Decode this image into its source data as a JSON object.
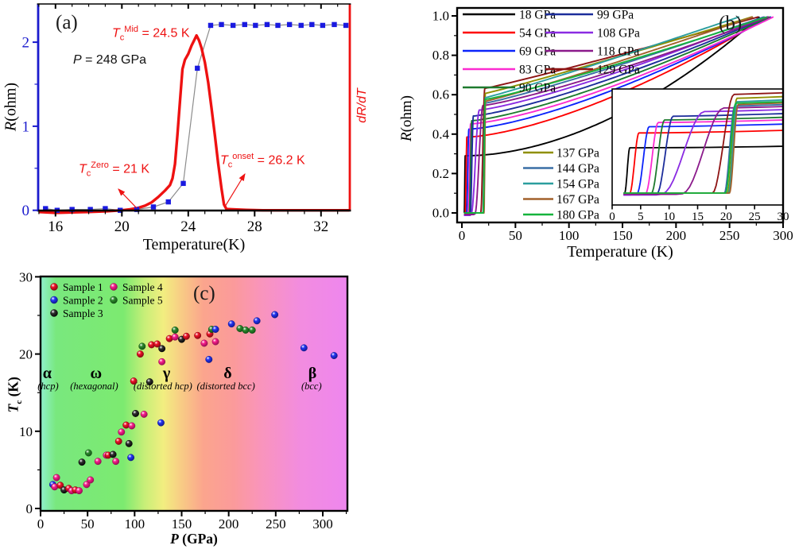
{
  "labels": {
    "panel_a": "(a)",
    "panel_b": "(b)",
    "panel_c": "(c)",
    "a_x": "Temperature(K)",
    "a_y_R": "R",
    "a_y_unit": "(ohm)",
    "a_y_right": "dR/dT",
    "a_note_P": "P",
    "a_note_rest": " = 248 GPa",
    "a_mid_T": "T",
    "a_mid_sub": "c",
    "a_mid_sup": "Mid",
    "a_mid_rest": " = 24.5 K",
    "a_zero_T": "T",
    "a_zero_sub": "c",
    "a_zero_sup": "Zero",
    "a_zero_rest": " = 21 K",
    "a_onset_T": "T",
    "a_onset_sub": "c",
    "a_onset_sup": "onset",
    "a_onset_rest": " = 26.2 K",
    "b_x": "Temperature (K)",
    "b_y_R": "R",
    "b_y_unit": "(ohm)",
    "c_x_P": "P",
    "c_x_rest": " (GPa)",
    "c_y_T": "T",
    "c_y_sub": "c",
    "c_y_rest": " (K)"
  },
  "chart_data": [
    {
      "id": "a",
      "type": "line",
      "title": "(a)",
      "xlabel": "Temperature(K)",
      "x_range": [
        14.95,
        33.7
      ],
      "x_ticks": [
        16,
        20,
        24,
        28,
        32
      ],
      "x_minor_step": 1,
      "ylabel_left": "R(ohm)",
      "y_range": [
        -0.06,
        2.45
      ],
      "y_ticks": [
        0,
        1,
        2
      ],
      "y_minor_step": 0.5,
      "ylabel_right": "dR/dT",
      "axis_colors": {
        "left": "#1a1acd",
        "right": "#ee1111",
        "bottom": "#000000"
      },
      "pressure_note": "P = 248 GPa",
      "annotations": [
        "Tc Mid = 24.5 K",
        "Tc Zero = 21 K",
        "Tc onset = 26.2 K"
      ],
      "series": [
        {
          "name": "R",
          "marker": "square",
          "marker_color": "#1a1ae0",
          "line_color": "#8c8c8c",
          "x": [
            15.4,
            16.1,
            17.0,
            18.1,
            19.0,
            19.9,
            20.9,
            21.9,
            22.8,
            23.7,
            24.55,
            25.35,
            26.0,
            26.7,
            27.4,
            28.05,
            28.75,
            29.4,
            30.1,
            30.8,
            31.45,
            32.1,
            32.8,
            33.5
          ],
          "y": [
            0.02,
            0.0,
            0.01,
            0.01,
            0.02,
            0.0,
            0.01,
            0.04,
            0.1,
            0.32,
            1.69,
            2.2,
            2.21,
            2.2,
            2.21,
            2.2,
            2.21,
            2.2,
            2.21,
            2.2,
            2.21,
            2.2,
            2.21,
            2.2
          ]
        },
        {
          "name": "dR/dT",
          "color": "#ee1111",
          "x": [
            15.0,
            16,
            17,
            18,
            19,
            20,
            20.5,
            21,
            21.4,
            21.8,
            22.2,
            22.6,
            22.9,
            23.05,
            23.2,
            23.35,
            23.5,
            23.65,
            23.8,
            24.0,
            24.2,
            24.35,
            24.5,
            24.65,
            24.8,
            25.0,
            25.2,
            25.4,
            25.6,
            25.8,
            26.0,
            26.15,
            26.3,
            26.8,
            27.5,
            28.5,
            30,
            32,
            33.7
          ],
          "y": [
            -0.02,
            -0.03,
            -0.025,
            -0.02,
            -0.012,
            0.0,
            0.012,
            0.03,
            0.055,
            0.095,
            0.16,
            0.235,
            0.3,
            0.38,
            0.55,
            0.9,
            1.3,
            1.68,
            1.79,
            1.86,
            1.96,
            2.02,
            2.08,
            2.02,
            1.93,
            1.76,
            1.52,
            1.22,
            0.9,
            0.56,
            0.26,
            0.07,
            0.015,
            0.01,
            0.005,
            0.0,
            0.0,
            0.0,
            0.0
          ]
        }
      ]
    },
    {
      "id": "b",
      "type": "line",
      "xlabel": "Temperature (K)",
      "x_range": [
        -4.5,
        300
      ],
      "x_ticks": [
        0,
        50,
        100,
        150,
        200,
        250,
        300
      ],
      "x_minor_step": 25,
      "ylabel": "R(ohm)",
      "y_range": [
        -0.05,
        1.04
      ],
      "y_tick_labels": [
        "0.0",
        "0.2",
        "0.4",
        "0.6",
        "0.8",
        "1.0"
      ],
      "y_minor_step": 0.1,
      "inset": {
        "x_range": [
          0,
          30
        ],
        "x_ticks": [
          0,
          5,
          10,
          15,
          20,
          25,
          30
        ]
      },
      "series": [
        {
          "label": "18 GPa",
          "color": "#000000",
          "tc_zero": 2.2,
          "tc_onset": 3.1,
          "r_residual": 0.29,
          "t_end": 278,
          "curve_exp": 1.85,
          "dip": 0
        },
        {
          "label": "54 GPa",
          "color": "#fe0000",
          "tc_zero": 3.1,
          "tc_onset": 4.7,
          "r_residual": 0.385,
          "t_end": 286,
          "curve_exp": 1.5,
          "dip": 0.004
        },
        {
          "label": "69 GPa",
          "color": "#0b24fb",
          "tc_zero": 4.4,
          "tc_onset": 6.5,
          "r_residual": 0.425,
          "t_end": 289,
          "curve_exp": 1.42,
          "dip": 0.012
        },
        {
          "label": "83 GPa",
          "color": "#fb2bd0",
          "tc_zero": 5.9,
          "tc_onset": 8.1,
          "r_residual": 0.452,
          "t_end": 291,
          "curve_exp": 1.38,
          "dip": 0.012
        },
        {
          "label": "90 GPa",
          "color": "#1e7a2e",
          "tc_zero": 6.9,
          "tc_onset": 9.2,
          "r_residual": 0.468,
          "t_end": 288,
          "curve_exp": 1.32,
          "dip": 0.008
        },
        {
          "label": "99 GPa",
          "color": "#1c2d9b",
          "tc_zero": 7.9,
          "tc_onset": 10.7,
          "r_residual": 0.492,
          "t_end": 286,
          "curve_exp": 1.28,
          "dip": 0.01
        },
        {
          "label": "108 GPa",
          "color": "#8a2be2",
          "tc_zero": 8.9,
          "tc_onset": 16.2,
          "r_residual": 0.522,
          "t_end": 283,
          "curve_exp": 1.24,
          "dip": 0.012
        },
        {
          "label": "118 GPa",
          "color": "#8b1a8b",
          "tc_zero": 12.4,
          "tc_onset": 19.6,
          "r_residual": 0.545,
          "t_end": 287,
          "curve_exp": 1.2,
          "dip": 0.008
        },
        {
          "label": "129 GPa",
          "color": "#8e1414",
          "tc_zero": 17.6,
          "tc_onset": 21.4,
          "r_residual": 0.632,
          "t_end": 277,
          "curve_exp": 1.06,
          "dip": 0
        },
        {
          "label": "137 GPa",
          "color": "#8f8f00",
          "tc_zero": 20.2,
          "tc_onset": 21.9,
          "r_residual": 0.607,
          "t_end": 271,
          "curve_exp": 1.06,
          "dip": 0
        },
        {
          "label": "144 GPa",
          "color": "#3a6ea5",
          "tc_zero": 19.7,
          "tc_onset": 21.5,
          "r_residual": 0.557,
          "t_end": 282,
          "curve_exp": 1.12,
          "dip": 0
        },
        {
          "label": "154 GPa",
          "color": "#2b9e9e",
          "tc_zero": 20.4,
          "tc_onset": 21.9,
          "r_residual": 0.585,
          "t_end": 259,
          "curve_exp": 1.06,
          "dip": 0
        },
        {
          "label": "167 GPa",
          "color": "#a2612b",
          "tc_zero": 20.6,
          "tc_onset": 22.1,
          "r_residual": 0.567,
          "t_end": 272,
          "curve_exp": 1.08,
          "dip": 0
        },
        {
          "label": "180 GPa",
          "color": "#15b43c",
          "tc_zero": 19.9,
          "tc_onset": 21.7,
          "r_residual": 0.576,
          "t_end": 285,
          "curve_exp": 1.12,
          "dip": 0
        }
      ]
    },
    {
      "id": "c",
      "type": "scatter",
      "xlabel": "P (GPa)",
      "x_range": [
        0,
        326
      ],
      "x_ticks": [
        0,
        50,
        100,
        150,
        200,
        250,
        300
      ],
      "x_minor_step": 25,
      "ylabel": "Tc (K)",
      "y_range": [
        0,
        30.3
      ],
      "y_ticks": [
        0,
        10,
        20,
        30
      ],
      "y_minor_step": 5,
      "samples": [
        {
          "name": "Sample 1",
          "color": "#f01428",
          "dark": "#7a0410"
        },
        {
          "name": "Sample 2",
          "color": "#2435f5",
          "dark": "#0d1680"
        },
        {
          "name": "Sample 3",
          "color": "#303030",
          "dark": "#000000"
        },
        {
          "name": "Sample 4",
          "color": "#fa1e8c",
          "dark": "#8c0a4d"
        },
        {
          "name": "Sample 5",
          "color": "#2d8a2d",
          "dark": "#0f4a12"
        }
      ],
      "points": [
        [
          13,
          3.1,
          1
        ],
        [
          17,
          4.0,
          3
        ],
        [
          15,
          2.8,
          3
        ],
        [
          21,
          3.0,
          0
        ],
        [
          25,
          2.4,
          2
        ],
        [
          30,
          2.6,
          0
        ],
        [
          33,
          2.3,
          3
        ],
        [
          37,
          2.4,
          0
        ],
        [
          41,
          2.3,
          3
        ],
        [
          49,
          3.1,
          3
        ],
        [
          53,
          3.7,
          3
        ],
        [
          44,
          6.0,
          2
        ],
        [
          51,
          7.2,
          4
        ],
        [
          61,
          6.1,
          3
        ],
        [
          70,
          6.9,
          3
        ],
        [
          72,
          6.9,
          0
        ],
        [
          77,
          7.0,
          2
        ],
        [
          80,
          6.1,
          3
        ],
        [
          96,
          6.6,
          1
        ],
        [
          83,
          8.7,
          0
        ],
        [
          94,
          8.4,
          2
        ],
        [
          86,
          9.9,
          3
        ],
        [
          91,
          10.8,
          0
        ],
        [
          97,
          10.7,
          3
        ],
        [
          101,
          12.3,
          2
        ],
        [
          110,
          12.2,
          3
        ],
        [
          128,
          11.1,
          1
        ],
        [
          99,
          16.5,
          0
        ],
        [
          116,
          16.4,
          2
        ],
        [
          106,
          20.0,
          0
        ],
        [
          108,
          21.0,
          4
        ],
        [
          118,
          21.2,
          0
        ],
        [
          124,
          21.3,
          0
        ],
        [
          129,
          20.7,
          2
        ],
        [
          137,
          22.0,
          0
        ],
        [
          143,
          23.1,
          4
        ],
        [
          143,
          22.2,
          3
        ],
        [
          150,
          21.9,
          2
        ],
        [
          155,
          22.3,
          0
        ],
        [
          129,
          19.0,
          3
        ],
        [
          167,
          22.4,
          0
        ],
        [
          180,
          22.6,
          0
        ],
        [
          182,
          23.2,
          4
        ],
        [
          186,
          23.2,
          1
        ],
        [
          174,
          21.4,
          3
        ],
        [
          186,
          21.6,
          3
        ],
        [
          179,
          19.3,
          1
        ],
        [
          203,
          23.9,
          1
        ],
        [
          212,
          23.3,
          4
        ],
        [
          218,
          23.1,
          4
        ],
        [
          225,
          23.1,
          4
        ],
        [
          230,
          24.3,
          1
        ],
        [
          249,
          25.1,
          1
        ],
        [
          280,
          20.8,
          1
        ],
        [
          312,
          19.8,
          1
        ]
      ],
      "phases": [
        {
          "symbol": "α",
          "p": 7,
          "sub": "(hcp)",
          "p_sub": 8
        },
        {
          "symbol": "ω",
          "p": 59,
          "sub": "(hexagonal)",
          "p_sub": 57
        },
        {
          "symbol": "γ",
          "p": 134,
          "sub": "(distorted hcp)",
          "p_sub": 130
        },
        {
          "symbol": "δ",
          "p": 199,
          "sub": "(distorted bcc)",
          "p_sub": 197
        },
        {
          "symbol": "β",
          "p": 289,
          "sub": "(bcc)",
          "p_sub": 288
        }
      ],
      "bg_stops": [
        [
          0,
          "#8ff0cd"
        ],
        [
          0.05,
          "#79e87e"
        ],
        [
          0.27,
          "#7cea70"
        ],
        [
          0.34,
          "#c8ef78"
        ],
        [
          0.4,
          "#f2ee80"
        ],
        [
          0.46,
          "#f8cb85"
        ],
        [
          0.53,
          "#fba58d"
        ],
        [
          0.63,
          "#fb9a9b"
        ],
        [
          0.72,
          "#f994bc"
        ],
        [
          0.85,
          "#f28ce0"
        ],
        [
          1,
          "#ee86ee"
        ]
      ]
    }
  ]
}
